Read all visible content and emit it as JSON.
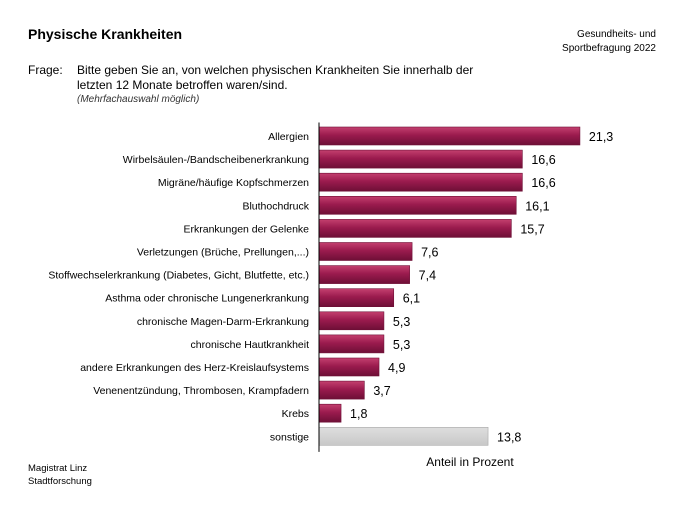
{
  "header": {
    "title": "Physische Krankheiten",
    "survey_line1": "Gesundheits- und",
    "survey_line2": "Sportbefragung 2022"
  },
  "question": {
    "label": "Frage:",
    "text": "Bitte geben Sie an, von welchen physischen Krankheiten Sie innerhalb der letzten 12 Monate betroffen waren/sind.",
    "note": "(Mehrfachauswahl möglich)"
  },
  "footer": {
    "line1": "Magistrat Linz",
    "line2": "Stadtforschung"
  },
  "colors": {
    "bar": "#9b1b4e",
    "bar_light": "#c4406f",
    "bar_dark": "#6e0f36",
    "other": "#c8c8c8",
    "axis": "#000000"
  },
  "chart_data": {
    "type": "bar",
    "orientation": "horizontal",
    "xlabel": "Anteil in Prozent",
    "xlim": [
      0,
      25
    ],
    "grid": false,
    "categories": [
      "Allergien",
      "Wirbelsäulen-/Bandscheibenerkrankung",
      "Migräne/häufige Kopfschmerzen",
      "Bluthochdruck",
      "Erkrankungen der Gelenke",
      "Verletzungen (Brüche, Prellungen,...)",
      "Stoffwechselerkrankung (Diabetes, Gicht, Blutfette, etc.)",
      "Asthma oder chronische Lungenerkrankung",
      "chronische Magen-Darm-Erkrankung",
      "chronische Hautkrankheit",
      "andere Erkrankungen des Herz-Kreislaufsystems",
      "Venenentzündung, Thrombosen, Krampfadern",
      "Krebs",
      "sonstige"
    ],
    "values": [
      21.3,
      16.6,
      16.6,
      16.1,
      15.7,
      7.6,
      7.4,
      6.1,
      5.3,
      5.3,
      4.9,
      3.7,
      1.8,
      13.8
    ],
    "value_labels": [
      "21,3",
      "16,6",
      "16,6",
      "16,1",
      "15,7",
      "7,6",
      "7,4",
      "6,1",
      "5,3",
      "5,3",
      "4,9",
      "3,7",
      "1,8",
      "13,8"
    ],
    "highlight_gray": [
      "sonstige"
    ]
  }
}
